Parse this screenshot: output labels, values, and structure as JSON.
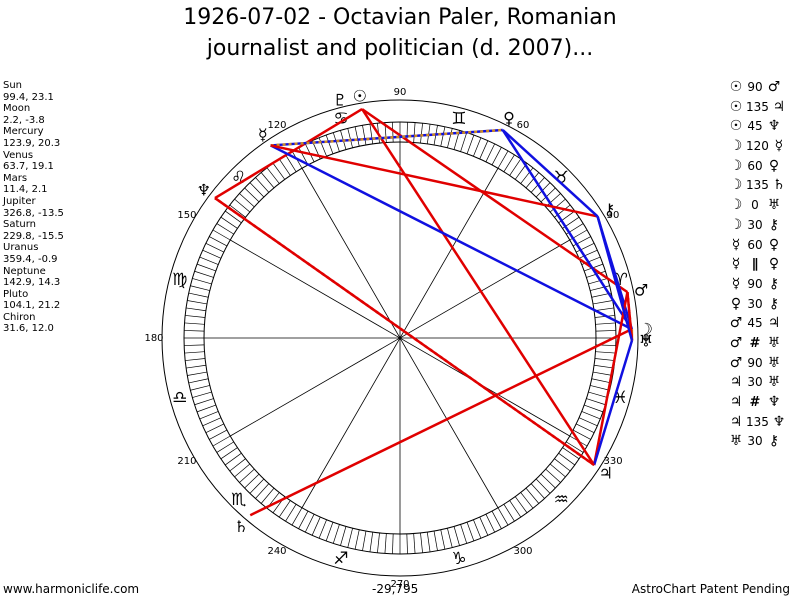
{
  "title_line1": "1926-07-02 - Octavian Paler, Romanian",
  "title_line2": "journalist and politician (d. 2007)...",
  "planets": [
    {
      "name": "Sun",
      "glyph": "☉",
      "lon": 99.4,
      "lat": 23.1
    },
    {
      "name": "Moon",
      "glyph": "☽",
      "lon": 2.2,
      "lat": -3.8
    },
    {
      "name": "Mercury",
      "glyph": "☿",
      "lon": 123.9,
      "lat": 20.3
    },
    {
      "name": "Venus",
      "glyph": "♀",
      "lon": 63.7,
      "lat": 19.1
    },
    {
      "name": "Mars",
      "glyph": "♂",
      "lon": 11.4,
      "lat": 2.1
    },
    {
      "name": "Jupiter",
      "glyph": "♃",
      "lon": 326.8,
      "lat": -13.5
    },
    {
      "name": "Saturn",
      "glyph": "♄",
      "lon": 229.8,
      "lat": -15.5
    },
    {
      "name": "Uranus",
      "glyph": "♅",
      "lon": 359.4,
      "lat": -0.9
    },
    {
      "name": "Neptune",
      "glyph": "♆",
      "lon": 142.9,
      "lat": 14.3
    },
    {
      "name": "Pluto",
      "glyph": "♇",
      "lon": 104.1,
      "lat": 21.2
    },
    {
      "name": "Chiron",
      "glyph": "⚷",
      "lon": 31.6,
      "lat": 12.0
    }
  ],
  "planet_list_text": "Sun\n99.4, 23.1\nMoon\n2.2, -3.8\nMercury\n123.9, 20.3\nVenus\n63.7, 19.1\nMars\n11.4, 2.1\nJupiter\n326.8, -13.5\nSaturn\n229.8, -15.5\nUranus\n359.4, -0.9\nNeptune\n142.9, 14.3\nPluto\n104.1, 21.2\nChiron\n31.6, 12.0",
  "degree_labels": [
    "0",
    "30",
    "60",
    "90",
    "120",
    "150",
    "180",
    "210",
    "240",
    "270",
    "300",
    "330"
  ],
  "zodiac": [
    {
      "name": "aries",
      "glyph": "♈",
      "start": 0
    },
    {
      "name": "taurus",
      "glyph": "♉",
      "start": 30
    },
    {
      "name": "gemini",
      "glyph": "♊",
      "start": 60
    },
    {
      "name": "cancer",
      "glyph": "♋",
      "start": 90
    },
    {
      "name": "leo",
      "glyph": "♌",
      "start": 120
    },
    {
      "name": "virgo",
      "glyph": "♍",
      "start": 150
    },
    {
      "name": "libra",
      "glyph": "♎",
      "start": 180
    },
    {
      "name": "scorpio",
      "glyph": "♏",
      "start": 210
    },
    {
      "name": "sagittarius",
      "glyph": "♐",
      "start": 240
    },
    {
      "name": "capricorn",
      "glyph": "♑",
      "start": 270
    },
    {
      "name": "aquarius",
      "glyph": "♒",
      "start": 300
    },
    {
      "name": "pisces",
      "glyph": "♓",
      "start": 330
    }
  ],
  "aspects": [
    {
      "p1": "☉",
      "sym": "90",
      "p2": "♂",
      "color": "#e00000",
      "style": "solid"
    },
    {
      "p1": "☉",
      "sym": "135",
      "p2": "♃",
      "color": "#e00000",
      "style": "solid"
    },
    {
      "p1": "☉",
      "sym": "45",
      "p2": "♆",
      "color": "#e00000",
      "style": "solid"
    },
    {
      "p1": "☽",
      "sym": "120",
      "p2": "☿",
      "color": "#1010e0",
      "style": "solid"
    },
    {
      "p1": "☽",
      "sym": "60",
      "p2": "♀",
      "color": "#1010e0",
      "style": "solid"
    },
    {
      "p1": "☽",
      "sym": "135",
      "p2": "♄",
      "color": "#e00000",
      "style": "solid"
    },
    {
      "p1": "☽",
      "sym": "0",
      "p2": "♅",
      "color": "#d08c1c",
      "style": "solid"
    },
    {
      "p1": "☽",
      "sym": "30",
      "p2": "⚷",
      "color": "#1010e0",
      "style": "solid"
    },
    {
      "p1": "☿",
      "sym": "60",
      "p2": "♀",
      "color": "#1010e0",
      "style": "solid"
    },
    {
      "p1": "☿",
      "sym": "∥",
      "p2": "♀",
      "color": "#d08c1c",
      "style": "dotted"
    },
    {
      "p1": "☿",
      "sym": "90",
      "p2": "⚷",
      "color": "#e00000",
      "style": "solid"
    },
    {
      "p1": "♀",
      "sym": "30",
      "p2": "⚷",
      "color": "#1010e0",
      "style": "solid"
    },
    {
      "p1": "♂",
      "sym": "45",
      "p2": "♃",
      "color": "#e00000",
      "style": "solid"
    },
    {
      "p1": "♂",
      "sym": "#",
      "p2": "♅",
      "color": "#e00000",
      "style": "dotted"
    },
    {
      "p1": "♂",
      "sym": "90",
      "p2": "♅",
      "color": "#e00000",
      "style": "solid"
    },
    {
      "p1": "♃",
      "sym": "30",
      "p2": "♅",
      "color": "#1010e0",
      "style": "solid"
    },
    {
      "p1": "♃",
      "sym": "#",
      "p2": "♆",
      "color": "#e00000",
      "style": "dotted"
    },
    {
      "p1": "♃",
      "sym": "135",
      "p2": "♆",
      "color": "#e00000",
      "style": "solid"
    },
    {
      "p1": "♅",
      "sym": "30",
      "p2": "⚷",
      "color": "#1010e0",
      "style": "solid"
    }
  ],
  "footer_left": "www.harmoniclife.com",
  "footer_center": "-29,795",
  "footer_right": "AstroChart Patent Pending",
  "colors": {
    "hard": "#e00000",
    "soft": "#1010e0",
    "conj": "#d08c1c"
  }
}
